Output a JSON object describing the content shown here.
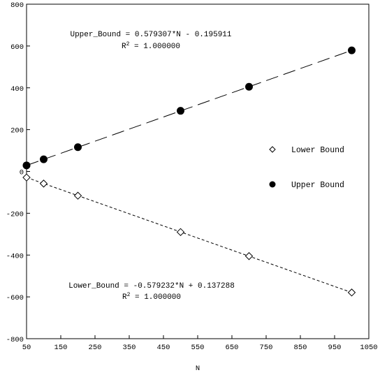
{
  "chart_data": {
    "type": "scatter",
    "title": "",
    "xlabel": "N",
    "ylabel": "",
    "xlim": [
      50,
      1050
    ],
    "ylim": [
      -800,
      800
    ],
    "xticks": [
      50,
      150,
      250,
      350,
      450,
      550,
      650,
      750,
      850,
      950,
      1050
    ],
    "yticks": [
      -800,
      -600,
      -400,
      -200,
      0,
      200,
      400,
      600,
      800
    ],
    "xtick_labels": [
      "50",
      "150",
      "250",
      "350",
      "450",
      "550",
      "650",
      "750",
      "850",
      "950",
      "1050"
    ],
    "ytick_labels": [
      "-800",
      "-600",
      "-400",
      "-200",
      "0",
      "200",
      "400",
      "600",
      "800"
    ],
    "grid": false,
    "legend_position": "right",
    "series": [
      {
        "name": "Lower Bound",
        "marker": "open-diamond",
        "color": "#000000",
        "x": [
          50,
          100,
          200,
          500,
          700,
          1000
        ],
        "y": [
          -29,
          -58,
          -116,
          -290,
          -405,
          -579
        ],
        "fit": {
          "slope": -0.579232,
          "intercept": 0.137288,
          "style": "short-dash"
        }
      },
      {
        "name": "Upper Bound",
        "marker": "filled-circle",
        "color": "#000000",
        "x": [
          50,
          100,
          200,
          500,
          700,
          1000
        ],
        "y": [
          29,
          58,
          116,
          290,
          405,
          579
        ],
        "fit": {
          "slope": 0.579307,
          "intercept": -0.195911,
          "style": "long-dash"
        }
      }
    ],
    "annotations": [
      {
        "id": "upper",
        "line1": "Upper_Bound = 0.579307*N - 0.195911",
        "line2_prefix": "R",
        "line2_sup": "2",
        "line2_suffix": " = 1.000000"
      },
      {
        "id": "lower",
        "line1": "Lower_Bound = -0.579232*N + 0.137288",
        "line2_prefix": "R",
        "line2_sup": "2",
        "line2_suffix": " = 1.000000"
      }
    ]
  }
}
